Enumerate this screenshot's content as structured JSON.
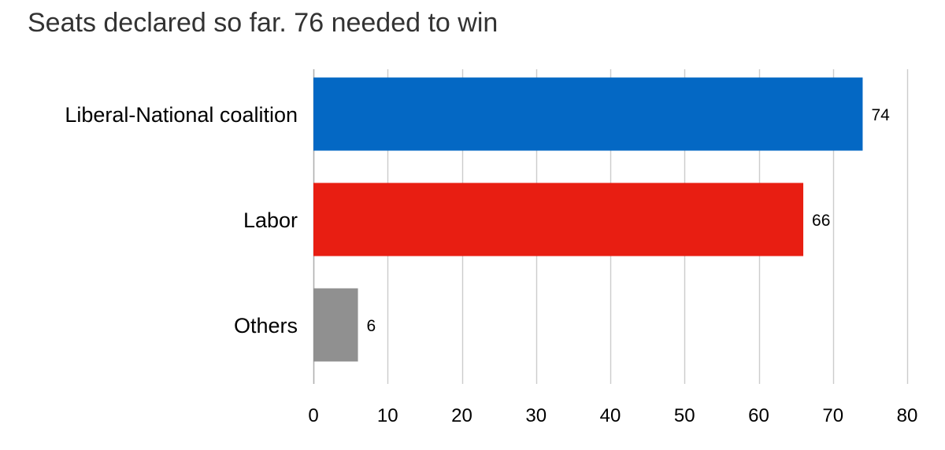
{
  "chart_data": {
    "type": "bar",
    "orientation": "horizontal",
    "title": "Seats declared so far. 76 needed to win",
    "categories": [
      "Liberal-National coalition",
      "Labor",
      "Others"
    ],
    "values": [
      74,
      66,
      6
    ],
    "colors": [
      "#0468c4",
      "#e81e12",
      "#909090"
    ],
    "xlim": [
      0,
      80
    ],
    "xticks": [
      0,
      10,
      20,
      30,
      40,
      50,
      60,
      70,
      80
    ],
    "grid": true,
    "legend": "none"
  }
}
